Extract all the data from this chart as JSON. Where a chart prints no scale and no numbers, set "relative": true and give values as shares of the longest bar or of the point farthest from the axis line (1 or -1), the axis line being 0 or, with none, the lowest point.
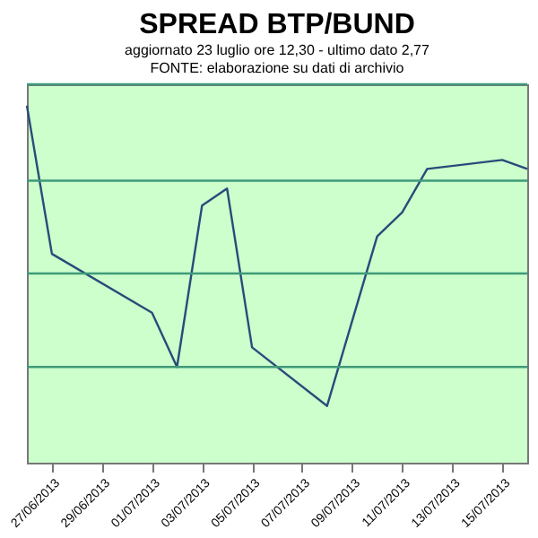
{
  "chart_data": {
    "type": "line",
    "title": "SPREAD BTP/BUND",
    "subtitle": "aggiornato 23 luglio ore 12,30 - ultimo dato 2,77",
    "annotations": [
      "FONTE: elaborazione su dati di archivio"
    ],
    "x": [
      "2013-06-26",
      "2013-06-27",
      "2013-07-01",
      "2013-07-02",
      "2013-07-03",
      "2013-07-04",
      "2013-07-05",
      "2013-07-08",
      "2013-07-10",
      "2013-07-11",
      "2013-07-12",
      "2013-07-15",
      "2013-07-16"
    ],
    "series": [
      {
        "color": "#2a4a7a",
        "values": [
          1,
          0.585,
          0.42,
          0.268,
          0.72,
          0.768,
          0.323,
          0.159,
          0.634,
          0.701,
          0.823,
          0.848,
          0.823
        ]
      }
    ],
    "relative": true,
    "xlim": [
      "2013-06-26",
      "2013-07-16"
    ],
    "xticks": [
      {
        "value": "2013-06-27",
        "label": "27/06/2013"
      },
      {
        "value": "2013-06-29",
        "label": "29/06/2013"
      },
      {
        "value": "2013-07-01",
        "label": "01/07/2013"
      },
      {
        "value": "2013-07-03",
        "label": "03/07/2013"
      },
      {
        "value": "2013-07-05",
        "label": "05/07/2013"
      },
      {
        "value": "2013-07-07",
        "label": "07/07/2013"
      },
      {
        "value": "2013-07-09",
        "label": "09/07/2013"
      },
      {
        "value": "2013-07-11",
        "label": "11/07/2013"
      },
      {
        "value": "2013-07-13",
        "label": "13/07/2013"
      },
      {
        "value": "2013-07-15",
        "label": "15/07/2013"
      }
    ],
    "ref_lines": [
      {
        "axis": "y",
        "value": 0.268,
        "color": "#3f9a7a"
      },
      {
        "axis": "y",
        "value": 0.53,
        "color": "#3f9a7a"
      },
      {
        "axis": "y",
        "value": 0.79,
        "color": "#3f9a7a"
      },
      {
        "axis": "y",
        "value": 1.06,
        "color": "#3f9a7a"
      }
    ],
    "marker": "none",
    "line_style": "solid"
  }
}
